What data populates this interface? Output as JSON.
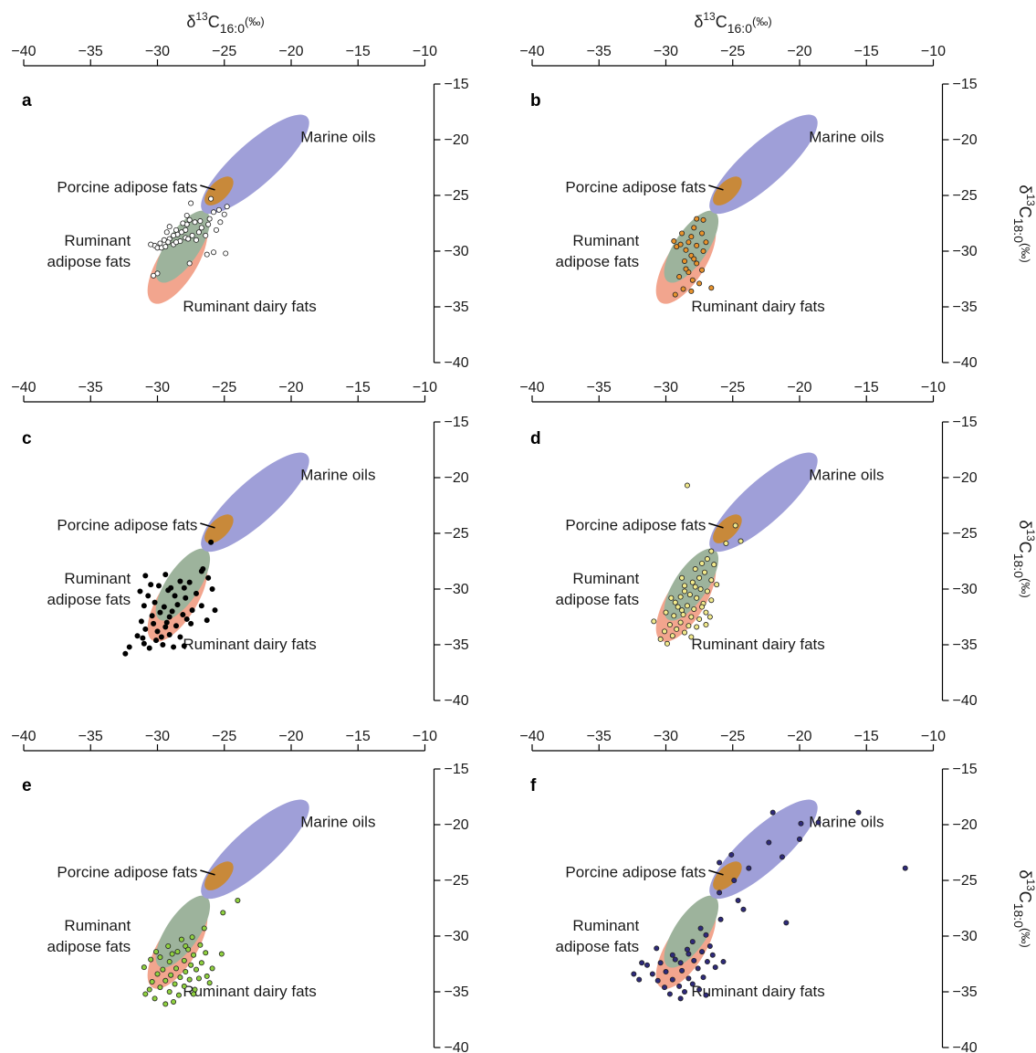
{
  "axis_titles": {
    "x": {
      "prefix": "δ",
      "sup": "13",
      "main": "C",
      "sub": "16:0",
      "unit": "(‰)"
    },
    "y": {
      "prefix": "δ",
      "sup": "13",
      "main": "C",
      "sub": "18:0",
      "unit": "(‰)"
    }
  },
  "regions": {
    "marine": {
      "label": "Marine oils",
      "color": "#9f9fd8"
    },
    "porcine": {
      "label": "Porcine adipose fats",
      "color": "#c8893a"
    },
    "ruminant_adipose": {
      "label": [
        "Ruminant",
        "adipose fats"
      ],
      "color": "#9db39c"
    },
    "ruminant_dairy": {
      "label": "Ruminant dairy fats",
      "color": "#f2a58e"
    }
  },
  "chart_data": [
    {
      "panel": "a",
      "type": "scatter",
      "xlim": [
        -40,
        -10
      ],
      "ylim": [
        -40,
        -15
      ],
      "xticks": [
        -40,
        -35,
        -30,
        -25,
        -20,
        -15,
        -10
      ],
      "yticks": [
        -15,
        -20,
        -25,
        -30,
        -35,
        -40
      ],
      "marker_color": "#ffffff",
      "points": [
        [
          -26.0,
          -25.3
        ],
        [
          -27.5,
          -25.7
        ],
        [
          -27.8,
          -26.8
        ],
        [
          -27.6,
          -27.2
        ],
        [
          -27.8,
          -27.6
        ],
        [
          -27.9,
          -28.1
        ],
        [
          -28.2,
          -28.3
        ],
        [
          -28.5,
          -28.5
        ],
        [
          -28.8,
          -28.6
        ],
        [
          -29.1,
          -28.9
        ],
        [
          -29.5,
          -29.0
        ],
        [
          -29.2,
          -29.2
        ],
        [
          -29.8,
          -29.3
        ],
        [
          -30.2,
          -29.5
        ],
        [
          -30.0,
          -29.7
        ],
        [
          -29.7,
          -29.7
        ],
        [
          -29.4,
          -29.6
        ],
        [
          -28.8,
          -29.4
        ],
        [
          -28.3,
          -29.1
        ],
        [
          -27.9,
          -28.8
        ],
        [
          -27.4,
          -28.6
        ],
        [
          -26.9,
          -28.3
        ],
        [
          -26.7,
          -27.9
        ],
        [
          -26.2,
          -27.6
        ],
        [
          -26.1,
          -27.1
        ],
        [
          -25.8,
          -26.5
        ],
        [
          -25.4,
          -26.3
        ],
        [
          -24.8,
          -26.0
        ],
        [
          -25.0,
          -26.7
        ],
        [
          -25.3,
          -27.4
        ],
        [
          -25.6,
          -28.1
        ],
        [
          -26.4,
          -28.6
        ],
        [
          -27.1,
          -29.0
        ],
        [
          -28.6,
          -28.1
        ],
        [
          -29.1,
          -27.8
        ],
        [
          -29.3,
          -28.3
        ],
        [
          -28.1,
          -27.5
        ],
        [
          -27.2,
          -27.4
        ],
        [
          -26.8,
          -27.3
        ],
        [
          -24.9,
          -30.2
        ],
        [
          -25.8,
          -30.1
        ],
        [
          -27.6,
          -31.1
        ],
        [
          -30.0,
          -32.0
        ],
        [
          -30.3,
          -32.2
        ],
        [
          -26.3,
          -30.3
        ],
        [
          -30.5,
          -29.4
        ],
        [
          -28.6,
          -29.2
        ],
        [
          -27.7,
          -28.9
        ]
      ]
    },
    {
      "panel": "b",
      "type": "scatter",
      "xlim": [
        -40,
        -10
      ],
      "ylim": [
        -40,
        -15
      ],
      "xticks": [
        -40,
        -35,
        -30,
        -25,
        -20,
        -15,
        -10
      ],
      "yticks": [
        -15,
        -20,
        -25,
        -30,
        -35,
        -40
      ],
      "marker_color": "#e8932c",
      "points": [
        [
          -27.7,
          -27.1
        ],
        [
          -27.2,
          -27.2
        ],
        [
          -27.9,
          -27.9
        ],
        [
          -27.3,
          -28.4
        ],
        [
          -28.1,
          -28.7
        ],
        [
          -28.3,
          -29.2
        ],
        [
          -29.4,
          -29.1
        ],
        [
          -29.2,
          -29.6
        ],
        [
          -28.9,
          -29.4
        ],
        [
          -28.5,
          -29.9
        ],
        [
          -27.7,
          -29.5
        ],
        [
          -27.2,
          -30.0
        ],
        [
          -28.1,
          -30.4
        ],
        [
          -28.6,
          -30.9
        ],
        [
          -27.7,
          -31.1
        ],
        [
          -27.3,
          -31.7
        ],
        [
          -28.3,
          -31.9
        ],
        [
          -29.0,
          -32.3
        ],
        [
          -28.0,
          -32.6
        ],
        [
          -27.5,
          -32.9
        ],
        [
          -28.7,
          -33.4
        ],
        [
          -29.3,
          -33.9
        ],
        [
          -26.6,
          -33.3
        ],
        [
          -28.1,
          -33.6
        ],
        [
          -28.5,
          -31.6
        ],
        [
          -27.9,
          -30.7
        ],
        [
          -27.0,
          -29.2
        ],
        [
          -28.8,
          -28.4
        ]
      ]
    },
    {
      "panel": "c",
      "type": "scatter",
      "xlim": [
        -40,
        -10
      ],
      "ylim": [
        -40,
        -15
      ],
      "xticks": [
        -40,
        -35,
        -30,
        -25,
        -20,
        -15,
        -10
      ],
      "yticks": [
        -15,
        -20,
        -25,
        -30,
        -35,
        -40
      ],
      "marker_color": "#000000",
      "points": [
        [
          -26.0,
          -25.8
        ],
        [
          -26.6,
          -28.2
        ],
        [
          -26.7,
          -28.4
        ],
        [
          -27.6,
          -29.4
        ],
        [
          -28.3,
          -29.3
        ],
        [
          -29.4,
          -28.7
        ],
        [
          -30.9,
          -28.8
        ],
        [
          -29.2,
          -30.1
        ],
        [
          -29.9,
          -29.7
        ],
        [
          -30.5,
          -29.6
        ],
        [
          -28.7,
          -30.6
        ],
        [
          -27.9,
          -30.8
        ],
        [
          -28.5,
          -31.4
        ],
        [
          -29.5,
          -31.6
        ],
        [
          -30.2,
          -31.2
        ],
        [
          -31.0,
          -31.5
        ],
        [
          -27.4,
          -31.9
        ],
        [
          -28.1,
          -32.3
        ],
        [
          -29.1,
          -32.5
        ],
        [
          -30.4,
          -32.4
        ],
        [
          -31.2,
          -32.9
        ],
        [
          -27.5,
          -33.1
        ],
        [
          -28.6,
          -33.3
        ],
        [
          -29.4,
          -33.4
        ],
        [
          -30.0,
          -33.8
        ],
        [
          -30.9,
          -33.6
        ],
        [
          -31.5,
          -34.2
        ],
        [
          -29.1,
          -34.1
        ],
        [
          -28.3,
          -34.3
        ],
        [
          -30.1,
          -34.6
        ],
        [
          -29.6,
          -35.0
        ],
        [
          -32.1,
          -35.2
        ],
        [
          -32.4,
          -35.8
        ],
        [
          -31.0,
          -34.9
        ],
        [
          -30.6,
          -35.3
        ],
        [
          -28.0,
          -35.1
        ],
        [
          -26.3,
          -32.8
        ],
        [
          -25.7,
          -31.9
        ],
        [
          -26.7,
          -31.5
        ],
        [
          -25.9,
          -30.0
        ],
        [
          -26.2,
          -29.0
        ],
        [
          -27.1,
          -30.4
        ],
        [
          -29.8,
          -32.1
        ],
        [
          -30.7,
          -30.6
        ],
        [
          -31.3,
          -30.2
        ],
        [
          -29.3,
          -33.0
        ],
        [
          -28.9,
          -32.0
        ],
        [
          -30.3,
          -33.1
        ],
        [
          -29.0,
          -29.9
        ],
        [
          -28.0,
          -29.9
        ],
        [
          -27.8,
          -32.7
        ],
        [
          -31.1,
          -34.4
        ],
        [
          -29.7,
          -34.3
        ],
        [
          -28.8,
          -35.2
        ]
      ]
    },
    {
      "panel": "d",
      "type": "scatter",
      "xlim": [
        -40,
        -10
      ],
      "ylim": [
        -40,
        -15
      ],
      "xticks": [
        -40,
        -35,
        -30,
        -25,
        -20,
        -15,
        -10
      ],
      "yticks": [
        -15,
        -20,
        -25,
        -30,
        -35,
        -40
      ],
      "marker_color": "#f2ea8c",
      "points": [
        [
          -28.4,
          -20.7
        ],
        [
          -24.8,
          -24.3
        ],
        [
          -24.4,
          -25.7
        ],
        [
          -25.5,
          -25.9
        ],
        [
          -26.6,
          -26.6
        ],
        [
          -26.9,
          -27.3
        ],
        [
          -27.3,
          -27.7
        ],
        [
          -26.4,
          -27.8
        ],
        [
          -27.8,
          -28.2
        ],
        [
          -27.1,
          -28.5
        ],
        [
          -27.5,
          -29.0
        ],
        [
          -26.6,
          -29.2
        ],
        [
          -28.0,
          -29.4
        ],
        [
          -28.6,
          -29.7
        ],
        [
          -27.4,
          -30.0
        ],
        [
          -26.9,
          -30.2
        ],
        [
          -28.2,
          -30.5
        ],
        [
          -28.9,
          -30.7
        ],
        [
          -27.7,
          -30.8
        ],
        [
          -26.6,
          -31.0
        ],
        [
          -27.2,
          -31.3
        ],
        [
          -28.4,
          -31.5
        ],
        [
          -29.1,
          -31.6
        ],
        [
          -27.9,
          -31.8
        ],
        [
          -27.0,
          -32.1
        ],
        [
          -28.7,
          -32.3
        ],
        [
          -29.4,
          -32.4
        ],
        [
          -28.1,
          -32.5
        ],
        [
          -27.5,
          -32.7
        ],
        [
          -28.9,
          -33.0
        ],
        [
          -29.7,
          -33.2
        ],
        [
          -28.3,
          -33.3
        ],
        [
          -27.7,
          -33.4
        ],
        [
          -29.2,
          -33.6
        ],
        [
          -30.1,
          -33.8
        ],
        [
          -28.6,
          -33.9
        ],
        [
          -29.5,
          -34.2
        ],
        [
          -30.4,
          -34.5
        ],
        [
          -30.9,
          -32.9
        ],
        [
          -30.0,
          -32.1
        ],
        [
          -29.3,
          -31.2
        ],
        [
          -28.6,
          -30.2
        ],
        [
          -27.8,
          -29.8
        ],
        [
          -27.3,
          -31.6
        ],
        [
          -26.7,
          -32.5
        ],
        [
          -29.6,
          -30.8
        ],
        [
          -28.8,
          -29.0
        ],
        [
          -26.2,
          -29.6
        ],
        [
          -27.0,
          -33.2
        ],
        [
          -29.9,
          -34.9
        ],
        [
          -28.1,
          -34.3
        ],
        [
          -28.8,
          -31.9
        ]
      ]
    },
    {
      "panel": "e",
      "type": "scatter",
      "xlim": [
        -40,
        -10
      ],
      "ylim": [
        -40,
        -15
      ],
      "xticks": [
        -40,
        -35,
        -30,
        -25,
        -20,
        -15,
        -10
      ],
      "yticks": [
        -15,
        -20,
        -25,
        -30,
        -35,
        -40
      ],
      "marker_color": "#8fd13f",
      "points": [
        [
          -24.0,
          -26.8
        ],
        [
          -25.1,
          -27.9
        ],
        [
          -26.5,
          -29.3
        ],
        [
          -27.4,
          -30.1
        ],
        [
          -26.8,
          -30.8
        ],
        [
          -27.9,
          -30.9
        ],
        [
          -28.5,
          -31.4
        ],
        [
          -27.3,
          -31.7
        ],
        [
          -26.4,
          -31.5
        ],
        [
          -25.2,
          -31.6
        ],
        [
          -28.0,
          -32.2
        ],
        [
          -29.1,
          -32.3
        ],
        [
          -27.5,
          -32.6
        ],
        [
          -26.7,
          -32.4
        ],
        [
          -28.6,
          -32.9
        ],
        [
          -29.6,
          -33.0
        ],
        [
          -27.9,
          -33.2
        ],
        [
          -27.1,
          -33.0
        ],
        [
          -29.0,
          -33.5
        ],
        [
          -30.0,
          -33.4
        ],
        [
          -28.3,
          -33.7
        ],
        [
          -27.6,
          -33.9
        ],
        [
          -29.4,
          -34.0
        ],
        [
          -30.4,
          -34.1
        ],
        [
          -28.7,
          -34.3
        ],
        [
          -28.0,
          -34.5
        ],
        [
          -29.8,
          -34.6
        ],
        [
          -30.6,
          -34.8
        ],
        [
          -29.1,
          -35.0
        ],
        [
          -28.4,
          -35.3
        ],
        [
          -30.2,
          -35.6
        ],
        [
          -29.4,
          -36.1
        ],
        [
          -31.0,
          -32.8
        ],
        [
          -30.5,
          -32.1
        ],
        [
          -30.9,
          -35.2
        ],
        [
          -27.2,
          -34.8
        ],
        [
          -26.3,
          -33.6
        ],
        [
          -25.9,
          -32.9
        ],
        [
          -26.1,
          -34.2
        ],
        [
          -28.9,
          -31.6
        ],
        [
          -29.8,
          -31.9
        ],
        [
          -27.7,
          -31.2
        ],
        [
          -28.2,
          -30.3
        ],
        [
          -29.2,
          -30.9
        ],
        [
          -30.1,
          -31.4
        ],
        [
          -26.9,
          -33.8
        ],
        [
          -27.3,
          -35.2
        ],
        [
          -28.8,
          -35.9
        ]
      ]
    },
    {
      "panel": "f",
      "type": "scatter",
      "xlim": [
        -40,
        -10
      ],
      "ylim": [
        -40,
        -15
      ],
      "xticks": [
        -40,
        -35,
        -30,
        -25,
        -20,
        -15,
        -10
      ],
      "yticks": [
        -15,
        -20,
        -25,
        -30,
        -35,
        -40
      ],
      "marker_color": "#2e2a7a",
      "points": [
        [
          -22.0,
          -18.9
        ],
        [
          -15.6,
          -18.9
        ],
        [
          -18.6,
          -19.8
        ],
        [
          -19.9,
          -19.9
        ],
        [
          -20.0,
          -21.3
        ],
        [
          -22.3,
          -21.6
        ],
        [
          -25.1,
          -22.7
        ],
        [
          -26.0,
          -23.4
        ],
        [
          -21.3,
          -22.9
        ],
        [
          -12.1,
          -23.9
        ],
        [
          -23.8,
          -23.9
        ],
        [
          -24.9,
          -25.0
        ],
        [
          -26.0,
          -26.1
        ],
        [
          -24.6,
          -26.8
        ],
        [
          -24.2,
          -27.6
        ],
        [
          -25.9,
          -28.5
        ],
        [
          -21.0,
          -28.8
        ],
        [
          -27.4,
          -29.3
        ],
        [
          -27.0,
          -29.9
        ],
        [
          -28.0,
          -30.5
        ],
        [
          -26.7,
          -30.9
        ],
        [
          -27.3,
          -31.4
        ],
        [
          -28.3,
          -31.6
        ],
        [
          -29.5,
          -31.7
        ],
        [
          -26.9,
          -32.3
        ],
        [
          -27.9,
          -32.2
        ],
        [
          -28.9,
          -32.4
        ],
        [
          -30.4,
          -32.4
        ],
        [
          -31.4,
          -32.6
        ],
        [
          -27.6,
          -32.9
        ],
        [
          -28.8,
          -33.1
        ],
        [
          -30.0,
          -33.2
        ],
        [
          -31.0,
          -33.4
        ],
        [
          -32.4,
          -33.4
        ],
        [
          -27.2,
          -33.7
        ],
        [
          -28.3,
          -33.8
        ],
        [
          -29.5,
          -33.9
        ],
        [
          -30.6,
          -34.0
        ],
        [
          -28.0,
          -34.3
        ],
        [
          -29.0,
          -34.5
        ],
        [
          -30.1,
          -34.6
        ],
        [
          -27.5,
          -34.8
        ],
        [
          -28.6,
          -35.0
        ],
        [
          -29.7,
          -35.2
        ],
        [
          -26.3,
          -32.8
        ],
        [
          -25.7,
          -32.3
        ],
        [
          -31.8,
          -32.4
        ],
        [
          -32.0,
          -33.9
        ],
        [
          -28.4,
          -31.2
        ],
        [
          -29.3,
          -32.1
        ],
        [
          -30.7,
          -31.1
        ],
        [
          -27.0,
          -35.3
        ],
        [
          -28.9,
          -35.6
        ],
        [
          -26.5,
          -31.7
        ]
      ]
    }
  ]
}
